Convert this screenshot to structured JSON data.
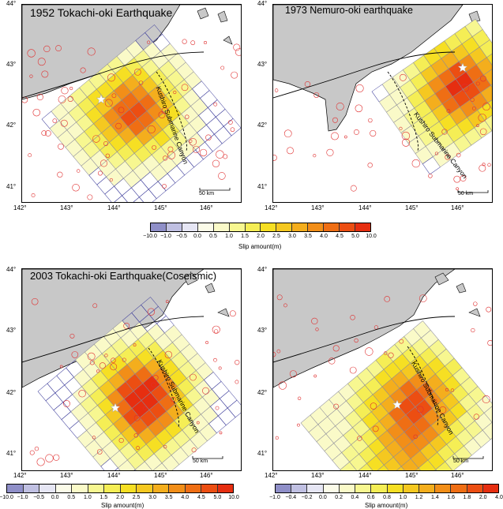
{
  "panels": [
    {
      "title": "1952 Tokachi-oki Earthquake",
      "lat_labels": [
        "44°",
        "43°",
        "42°",
        "41°"
      ],
      "lon_labels": [
        "142°",
        "143°",
        "144°",
        "145°",
        "146°"
      ],
      "canyon_label": "Kushiro Submarine Canyon",
      "scale_label": "50 km"
    },
    {
      "title": "1973 Nemuro-oki earthquake",
      "lat_labels": [
        "44°",
        "43°",
        "42°",
        "41°"
      ],
      "lon_labels": [
        "142°",
        "143°",
        "144°",
        "145°",
        "146°"
      ],
      "canyon_label": "Kushiro Submarine Canyon",
      "scale_label": "50 km"
    },
    {
      "title": "2003 Tokachi-oki Earthquake(Coseismic)",
      "lat_labels": [
        "44°",
        "43°",
        "42°",
        "41°"
      ],
      "lon_labels": [
        "142°",
        "143°",
        "144°",
        "145°",
        "146°"
      ],
      "canyon_label": "Kushiro Submarine Canyon",
      "scale_label": "50 km"
    },
    {
      "title": "",
      "lat_labels": [
        "44°",
        "43°",
        "42°",
        "41°"
      ],
      "lon_labels": [
        "142°",
        "143°",
        "144°",
        "145°",
        "146°"
      ],
      "canyon_label": "Kushiro Submarine Canyon",
      "scale_label": "50 km"
    }
  ],
  "colorbars": [
    {
      "ticks": [
        "−10.0",
        "−1.0",
        "−0.5",
        "0.0",
        "0.5",
        "1.0",
        "1.5",
        "2.0",
        "2.5",
        "3.0",
        "3.5",
        "4.0",
        "4.5",
        "5.0",
        "10.0"
      ],
      "label": "Slip amount(m)"
    },
    {
      "ticks": [
        "−10.0",
        "−1.0",
        "−0.5",
        "0.0",
        "0.5",
        "1.0",
        "1.5",
        "2.0",
        "2.5",
        "3.0",
        "3.5",
        "4.0",
        "4.5",
        "5.0",
        "10.0"
      ],
      "label": "Slip amount(m)"
    },
    {
      "ticks": [
        "−1.0",
        "−0.4",
        "−0.2",
        "0.0",
        "0.2",
        "0.4",
        "0.6",
        "0.8",
        "1.0",
        "1.2",
        "1.4",
        "1.6",
        "1.8",
        "2.0",
        "4.0"
      ],
      "label": "Slip amount(m)"
    }
  ],
  "colors": {
    "land": "#c8c8c8",
    "grid_line": "#3b3b9a",
    "epicenter_circle": "#e03030",
    "swatches": [
      "#8f8fc8",
      "#c0c0e2",
      "#e6e6f4",
      "#fbfbe8",
      "#fafac8",
      "#f7f790",
      "#f5ee55",
      "#f6df23",
      "#f5c820",
      "#f4ae1d",
      "#f28e18",
      "#ef6e14",
      "#ec4e12",
      "#e62e10"
    ]
  }
}
